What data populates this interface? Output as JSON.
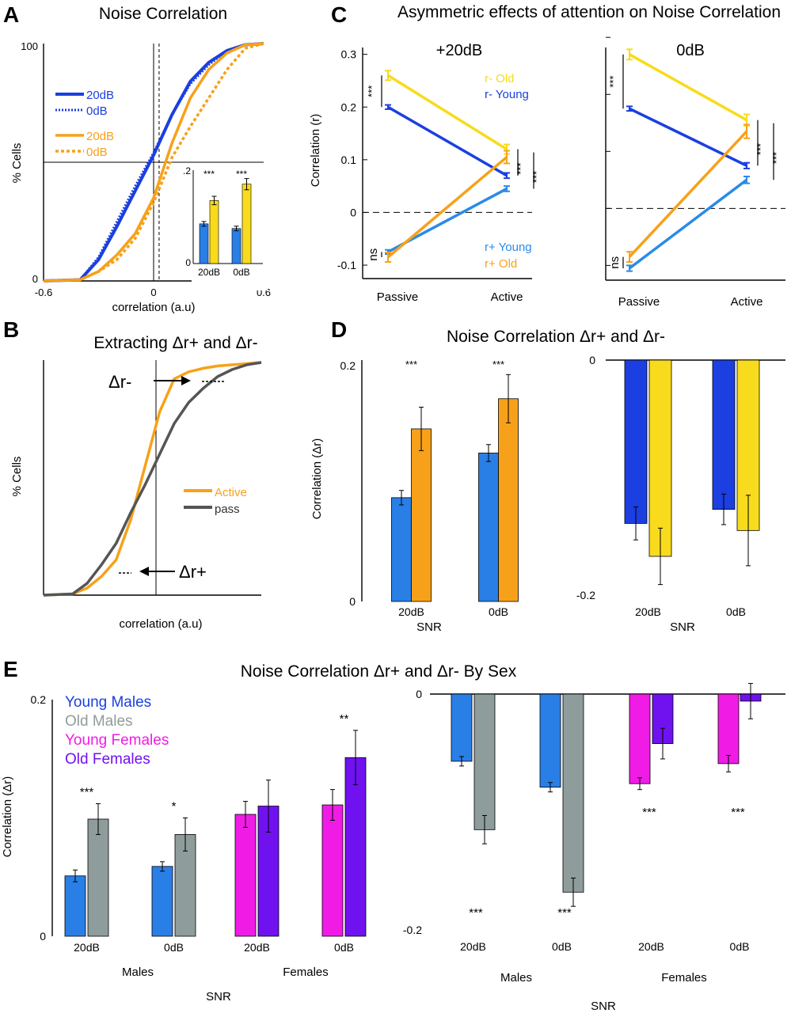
{
  "panel_letters": {
    "A": "A",
    "B": "B",
    "C": "C",
    "D": "D",
    "E": "E"
  },
  "colors": {
    "young_blue": "#1b3fe0",
    "young_light": "#2a7fe6",
    "old_orange": "#f7a11a",
    "old_yellow": "#f8db1c",
    "old_gray": "#8e9d9b",
    "young_female": "#f01ce6",
    "old_female": "#7012f0",
    "pass_gray": "#555555"
  },
  "chart_data": [
    {
      "id": "A",
      "type": "line",
      "title": "Noise Correlation",
      "xlabel": "correlation (a.u)",
      "ylabel": "% Cells",
      "xlim": [
        -0.6,
        0.6
      ],
      "ylim": [
        0,
        100
      ],
      "xtick_labels": [
        "-0.6",
        "0",
        "0.6"
      ],
      "ytick_labels": [
        "0",
        "100"
      ],
      "legend": [
        "20dB",
        "0dB",
        "20dB",
        "0dB"
      ],
      "series": [
        {
          "style": "blue-solid",
          "x": [
            -0.6,
            -0.4,
            -0.3,
            -0.2,
            -0.1,
            0.0,
            0.1,
            0.2,
            0.3,
            0.4,
            0.5,
            0.6
          ],
          "y": [
            0,
            0.5,
            9,
            23,
            38,
            53,
            70,
            84,
            92,
            97,
            99.5,
            100
          ]
        },
        {
          "style": "blue-dotted",
          "x": [
            -0.6,
            -0.4,
            -0.3,
            -0.2,
            -0.1,
            0.0,
            0.1,
            0.2,
            0.3,
            0.4,
            0.5,
            0.6
          ],
          "y": [
            0,
            0.5,
            10,
            25,
            40,
            54,
            70,
            83,
            91,
            97,
            99.5,
            100
          ]
        },
        {
          "style": "orange-solid",
          "x": [
            -0.6,
            -0.4,
            -0.3,
            -0.2,
            -0.1,
            0.0,
            0.1,
            0.2,
            0.3,
            0.4,
            0.5,
            0.6
          ],
          "y": [
            0,
            0.5,
            4,
            11,
            20,
            35,
            58,
            77,
            89,
            96,
            99.5,
            100
          ]
        },
        {
          "style": "orange-dotted",
          "x": [
            -0.6,
            -0.4,
            -0.3,
            -0.2,
            -0.1,
            0.0,
            0.1,
            0.2,
            0.3,
            0.4,
            0.5,
            0.6
          ],
          "y": [
            0,
            0.5,
            4,
            9,
            18,
            33,
            52,
            65,
            77,
            89,
            98,
            100
          ]
        }
      ],
      "inset": {
        "type": "bar",
        "categories": [
          "20dB",
          "0dB"
        ],
        "ytick_labels": [
          ".2",
          "0"
        ],
        "ylim": [
          0,
          0.2
        ],
        "values_young": [
          0.085,
          0.075
        ],
        "values_old": [
          0.135,
          0.17
        ],
        "err_young": [
          0.005,
          0.005
        ],
        "err_old": [
          0.009,
          0.012
        ],
        "stars": [
          "***",
          "***"
        ]
      }
    },
    {
      "id": "B",
      "type": "line",
      "title": "Extracting   Δr+ and Δr-",
      "xlabel": "correlation (a.u)",
      "ylabel": "% Cells",
      "legend": [
        "Active",
        "pass"
      ],
      "annotations": [
        "Δr-",
        "Δr+"
      ],
      "series": [
        {
          "name": "Active",
          "x": [
            -0.6,
            -0.4,
            -0.3,
            -0.2,
            -0.1,
            0,
            0.1,
            0.2,
            0.3,
            0.4,
            0.5,
            0.6,
            0.7,
            0.8,
            0.9
          ],
          "y": [
            0,
            0.5,
            3,
            8,
            15,
            32,
            55,
            78,
            92,
            95,
            96.5,
            97.5,
            98,
            98.5,
            99
          ]
        },
        {
          "name": "pass",
          "x": [
            -0.6,
            -0.4,
            -0.3,
            -0.2,
            -0.1,
            0,
            0.1,
            0.2,
            0.3,
            0.4,
            0.5,
            0.6,
            0.7,
            0.8,
            0.9
          ],
          "y": [
            0,
            0.5,
            5,
            13,
            22,
            35,
            47,
            60,
            73,
            82,
            88,
            93,
            96,
            98,
            99
          ]
        }
      ]
    },
    {
      "id": "C",
      "type": "line",
      "title": "Asymmetric effects of attention on Noise Correlation",
      "ylabel": "Correlation (r)",
      "categories": [
        "Passive",
        "Active"
      ],
      "ylim": [
        -0.13,
        0.31
      ],
      "ytick_labels": [
        "0.3",
        "0.2",
        "0.1",
        "0",
        "-0.1"
      ],
      "subplots": [
        {
          "name": "+20dB",
          "legend": [
            "r-  Old",
            "r- Young",
            "r+ Young",
            "r+ Old"
          ],
          "series": [
            {
              "key": "old_neg",
              "values": [
                0.26,
                0.12
              ],
              "err": [
                0.009,
                0.009
              ]
            },
            {
              "key": "young_neg",
              "values": [
                0.2,
                0.07
              ],
              "err": [
                0.004,
                0.005
              ]
            },
            {
              "key": "young_pos",
              "values": [
                -0.075,
                0.045
              ],
              "err": [
                0.004,
                0.005
              ]
            },
            {
              "key": "old_pos",
              "values": [
                -0.085,
                0.105
              ],
              "err": [
                0.009,
                0.012
              ]
            }
          ],
          "brackets": [
            {
              "text": "***",
              "pos": "passive-neg"
            },
            {
              "text": "ns",
              "pos": "passive-pos"
            },
            {
              "text": "***",
              "pos": "active-1"
            },
            {
              "text": "***",
              "pos": "active-2"
            }
          ]
        },
        {
          "name": "0dB",
          "series": [
            {
              "key": "old_neg",
              "values": [
                0.27,
                0.155
              ],
              "err": [
                0.009,
                0.01
              ]
            },
            {
              "key": "young_neg",
              "values": [
                0.175,
                0.075
              ],
              "err": [
                0.004,
                0.005
              ]
            },
            {
              "key": "young_pos",
              "values": [
                -0.105,
                0.05
              ],
              "err": [
                0.005,
                0.006
              ]
            },
            {
              "key": "old_pos",
              "values": [
                -0.085,
                0.135
              ],
              "err": [
                0.009,
                0.012
              ]
            }
          ],
          "brackets": [
            {
              "text": "***",
              "pos": "passive-neg"
            },
            {
              "text": "ns",
              "pos": "passive-pos"
            },
            {
              "text": "***",
              "pos": "active-1"
            },
            {
              "text": "***",
              "pos": "active-2"
            }
          ]
        }
      ]
    },
    {
      "id": "D",
      "type": "bar",
      "title": "Noise Correlation Δr+ and Δr-",
      "ylabel": "Correlation (Δr)",
      "xlabel": "SNR",
      "categories": [
        "20dB",
        "0dB"
      ],
      "subplots": [
        {
          "ylim": [
            0,
            0.2
          ],
          "ytick_labels": [
            "0.2",
            "0"
          ],
          "series": [
            {
              "key": "young",
              "values": [
                0.086,
                0.123
              ],
              "err": [
                0.006,
                0.007
              ]
            },
            {
              "key": "old",
              "values": [
                0.143,
                0.168
              ],
              "err": [
                0.018,
                0.02
              ]
            }
          ],
          "stars": [
            "***",
            "***"
          ]
        },
        {
          "ylim": [
            -0.2,
            0
          ],
          "ytick_labels": [
            "0",
            "-0.2"
          ],
          "series": [
            {
              "key": "young",
              "values": [
                -0.139,
                -0.127
              ],
              "err": [
                0.014,
                0.013
              ]
            },
            {
              "key": "old",
              "values": [
                -0.167,
                -0.145
              ],
              "err": [
                0.024,
                0.03
              ]
            }
          ]
        }
      ]
    },
    {
      "id": "E",
      "type": "bar",
      "title": "Noise Correlation Δr+ and Δr- By Sex",
      "ylabel": "Correlation (Δr)",
      "xlabel": "SNR",
      "legend": [
        "Young Males",
        "Old Males",
        "Young Females",
        "Old Females"
      ],
      "categories": [
        "20dB",
        "0dB",
        "20dB",
        "0dB"
      ],
      "groups": [
        "Males",
        "Females"
      ],
      "subplots": [
        {
          "ylim": [
            0,
            0.2
          ],
          "ytick_labels": [
            "0.2",
            "0"
          ],
          "pairs": [
            {
              "young": 0.051,
              "old": 0.099,
              "err_young": 0.005,
              "err_old": 0.013,
              "star": "***",
              "palette": "male"
            },
            {
              "young": 0.059,
              "old": 0.086,
              "err_young": 0.004,
              "err_old": 0.014,
              "star": "*",
              "palette": "male"
            },
            {
              "young": 0.103,
              "old": 0.11,
              "err_young": 0.011,
              "err_old": 0.022,
              "star": "",
              "palette": "female"
            },
            {
              "young": 0.111,
              "old": 0.151,
              "err_young": 0.013,
              "err_old": 0.023,
              "star": "**",
              "palette": "female"
            }
          ]
        },
        {
          "ylim": [
            -0.2,
            0
          ],
          "ytick_labels": [
            "0",
            "-0.2"
          ],
          "pairs": [
            {
              "young": -0.057,
              "old": -0.115,
              "err_young": 0.004,
              "err_old": 0.012,
              "star": "***",
              "palette": "male"
            },
            {
              "young": -0.079,
              "old": -0.168,
              "err_young": 0.004,
              "err_old": 0.012,
              "star": "***",
              "palette": "male"
            },
            {
              "young": -0.076,
              "old": -0.042,
              "err_young": 0.005,
              "err_old": 0.013,
              "star": "***",
              "palette": "female"
            },
            {
              "young": -0.059,
              "old": -0.006,
              "err_young": 0.007,
              "err_old": 0.015,
              "star": "***",
              "palette": "female"
            }
          ]
        }
      ]
    }
  ]
}
